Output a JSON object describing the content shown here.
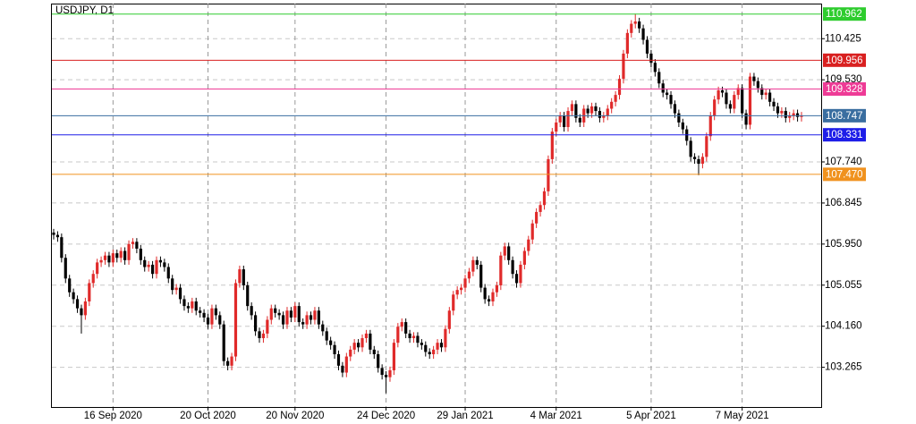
{
  "chart_data": {
    "type": "candlestick",
    "title": "USDJPY, D1",
    "categories": [
      null,
      null,
      null,
      null,
      null,
      null,
      null,
      null,
      null,
      null,
      null,
      null,
      null,
      null,
      null,
      "16 Sep 2020",
      null,
      null,
      null,
      null,
      null,
      null,
      null,
      null,
      null,
      null,
      null,
      null,
      null,
      null,
      null,
      null,
      null,
      null,
      null,
      null,
      null,
      null,
      null,
      "20 Oct 2020",
      null,
      null,
      null,
      null,
      null,
      null,
      null,
      null,
      null,
      null,
      null,
      null,
      null,
      null,
      null,
      null,
      null,
      null,
      null,
      null,
      null,
      "20 Nov 2020",
      null,
      null,
      null,
      null,
      null,
      null,
      null,
      null,
      null,
      null,
      null,
      null,
      null,
      null,
      null,
      null,
      null,
      null,
      null,
      null,
      null,
      null,
      "24 Dec 2020",
      null,
      null,
      null,
      null,
      null,
      null,
      null,
      null,
      null,
      null,
      null,
      null,
      null,
      null,
      null,
      null,
      null,
      null,
      null,
      "29 Jan 2021",
      null,
      null,
      null,
      null,
      null,
      null,
      null,
      null,
      null,
      null,
      null,
      null,
      null,
      null,
      null,
      null,
      null,
      null,
      null,
      null,
      null,
      null,
      "4 Mar 2021",
      null,
      null,
      null,
      null,
      null,
      null,
      null,
      null,
      null,
      null,
      null,
      null,
      null,
      null,
      null,
      null,
      null,
      null,
      null,
      null,
      null,
      null,
      null,
      "5 Apr 2021",
      null,
      null,
      null,
      null,
      null,
      null,
      null,
      null,
      null,
      null,
      null,
      null,
      null,
      null,
      null,
      null,
      null,
      null,
      null,
      null,
      null,
      null,
      "7 May 2021",
      null,
      null,
      null,
      null,
      null,
      null,
      null,
      null,
      null,
      null,
      null,
      null,
      null,
      null,
      null
    ],
    "open": [
      106.2,
      106.15,
      106.1,
      105.65,
      105.2,
      104.9,
      104.75,
      104.55,
      104.4,
      104.7,
      105.1,
      105.3,
      105.55,
      105.6,
      105.7,
      105.55,
      105.75,
      105.65,
      105.8,
      105.6,
      105.95,
      106.0,
      105.85,
      105.6,
      105.45,
      105.5,
      105.3,
      105.6,
      105.55,
      105.45,
      105.2,
      104.95,
      105.0,
      104.75,
      104.6,
      104.55,
      104.7,
      104.5,
      104.45,
      104.35,
      104.2,
      104.55,
      104.4,
      104.2,
      103.4,
      103.3,
      103.5,
      105.1,
      105.4,
      105.05,
      104.6,
      104.4,
      104.05,
      103.9,
      104.0,
      104.3,
      104.55,
      104.45,
      104.4,
      104.2,
      104.5,
      104.35,
      104.6,
      104.25,
      104.2,
      104.4,
      104.3,
      104.5,
      104.2,
      104.05,
      103.85,
      103.75,
      103.55,
      103.3,
      103.15,
      103.5,
      103.65,
      103.8,
      103.7,
      103.9,
      104.0,
      103.65,
      103.55,
      103.25,
      103.1,
      103.05,
      103.2,
      103.8,
      104.15,
      104.25,
      104.0,
      103.9,
      103.95,
      103.8,
      103.75,
      103.6,
      103.55,
      103.65,
      103.8,
      103.7,
      104.1,
      104.5,
      104.85,
      104.95,
      105.0,
      105.2,
      105.35,
      105.6,
      105.5,
      105.0,
      104.75,
      104.7,
      104.9,
      105.05,
      105.7,
      105.9,
      105.6,
      105.3,
      105.1,
      105.5,
      105.8,
      106.05,
      106.4,
      106.65,
      106.8,
      107.1,
      107.8,
      108.4,
      108.6,
      108.75,
      108.5,
      108.85,
      109.0,
      108.7,
      108.6,
      108.9,
      108.8,
      108.95,
      108.85,
      108.7,
      108.75,
      108.9,
      109.05,
      109.2,
      109.55,
      110.1,
      110.55,
      110.75,
      110.8,
      110.65,
      110.4,
      110.1,
      109.9,
      109.7,
      109.45,
      109.25,
      109.2,
      109.0,
      108.8,
      108.6,
      108.45,
      108.2,
      107.85,
      107.8,
      107.7,
      107.85,
      108.3,
      108.75,
      109.1,
      109.3,
      109.25,
      109.0,
      108.9,
      109.2,
      109.35,
      108.8,
      108.55,
      109.6,
      109.5,
      109.35,
      109.2,
      109.25,
      109.05,
      108.95,
      108.8,
      108.85,
      108.7,
      108.75,
      108.8,
      108.72
    ],
    "high": [
      106.28,
      106.23,
      106.18,
      105.73,
      105.28,
      104.98,
      104.83,
      104.63,
      104.78,
      105.18,
      105.38,
      105.63,
      105.68,
      105.78,
      105.78,
      105.83,
      105.83,
      105.88,
      105.88,
      106.03,
      106.08,
      106.08,
      105.93,
      105.68,
      105.58,
      105.58,
      105.68,
      105.68,
      105.63,
      105.53,
      105.28,
      105.08,
      105.08,
      104.83,
      104.68,
      104.78,
      104.78,
      104.58,
      104.53,
      104.43,
      104.63,
      104.63,
      104.48,
      104.28,
      103.48,
      103.58,
      105.18,
      105.48,
      105.48,
      105.13,
      104.68,
      104.48,
      104.13,
      104.08,
      104.38,
      104.63,
      104.63,
      104.53,
      104.48,
      104.58,
      104.58,
      104.68,
      104.68,
      104.33,
      104.48,
      104.48,
      104.58,
      104.58,
      104.28,
      104.13,
      103.93,
      103.83,
      103.63,
      103.38,
      103.58,
      103.73,
      103.88,
      103.88,
      103.98,
      104.08,
      104.08,
      103.73,
      103.63,
      103.33,
      103.18,
      103.28,
      103.88,
      104.23,
      104.33,
      104.33,
      104.08,
      104.03,
      104.03,
      103.88,
      103.83,
      103.68,
      103.73,
      103.88,
      103.88,
      104.18,
      104.58,
      104.93,
      105.03,
      105.08,
      105.28,
      105.43,
      105.68,
      105.68,
      105.58,
      105.08,
      104.83,
      104.98,
      105.13,
      105.78,
      105.98,
      105.98,
      105.68,
      105.38,
      105.58,
      105.88,
      106.13,
      106.48,
      106.73,
      106.88,
      107.18,
      107.88,
      108.48,
      108.68,
      108.83,
      108.83,
      108.93,
      109.08,
      109.08,
      108.78,
      108.98,
      108.98,
      109.03,
      109.03,
      108.93,
      108.83,
      108.98,
      109.13,
      109.28,
      109.63,
      110.18,
      110.63,
      110.83,
      110.97,
      110.88,
      110.73,
      110.48,
      110.18,
      109.98,
      109.78,
      109.53,
      109.33,
      109.28,
      109.08,
      108.88,
      108.68,
      108.53,
      108.28,
      107.93,
      107.88,
      107.93,
      108.38,
      108.83,
      109.18,
      109.38,
      109.38,
      109.33,
      109.08,
      109.28,
      109.43,
      109.43,
      108.88,
      109.68,
      109.68,
      109.58,
      109.43,
      109.33,
      109.33,
      109.13,
      109.03,
      108.93,
      108.93,
      108.83,
      108.88,
      108.88,
      108.83
    ],
    "low": [
      106.05,
      106.0,
      105.55,
      105.1,
      104.8,
      104.65,
      104.45,
      104.0,
      104.3,
      104.6,
      105.0,
      105.2,
      105.45,
      105.5,
      105.45,
      105.45,
      105.55,
      105.55,
      105.5,
      105.5,
      105.85,
      105.75,
      105.5,
      105.35,
      105.35,
      105.2,
      105.2,
      105.45,
      105.35,
      105.1,
      104.85,
      104.85,
      104.65,
      104.5,
      104.45,
      104.45,
      104.4,
      104.35,
      104.25,
      104.1,
      104.1,
      104.3,
      104.1,
      103.3,
      103.2,
      103.2,
      103.4,
      105.0,
      104.95,
      104.5,
      104.3,
      103.95,
      103.8,
      103.8,
      103.9,
      104.2,
      104.35,
      104.3,
      104.1,
      104.1,
      104.25,
      104.25,
      104.15,
      104.1,
      104.1,
      104.2,
      104.2,
      104.1,
      103.95,
      103.75,
      103.65,
      103.45,
      103.2,
      103.05,
      103.05,
      103.4,
      103.55,
      103.6,
      103.6,
      103.8,
      103.55,
      103.45,
      103.15,
      103.0,
      102.7,
      102.95,
      103.1,
      103.7,
      104.05,
      103.9,
      103.8,
      103.8,
      103.7,
      103.65,
      103.5,
      103.45,
      103.45,
      103.55,
      103.6,
      103.6,
      104.0,
      104.4,
      104.75,
      104.85,
      104.9,
      105.1,
      105.25,
      105.4,
      104.9,
      104.65,
      104.6,
      104.6,
      104.8,
      104.95,
      105.6,
      105.5,
      105.2,
      105.0,
      105.0,
      105.4,
      105.7,
      105.95,
      106.3,
      106.55,
      106.7,
      107.0,
      107.7,
      108.3,
      108.5,
      108.4,
      108.4,
      108.75,
      108.6,
      108.5,
      108.5,
      108.7,
      108.7,
      108.75,
      108.6,
      108.6,
      108.65,
      108.8,
      108.95,
      109.1,
      109.45,
      110.0,
      110.45,
      110.65,
      110.55,
      110.3,
      110.0,
      109.8,
      109.6,
      109.35,
      109.15,
      109.1,
      108.9,
      108.7,
      108.5,
      108.35,
      108.1,
      107.75,
      107.7,
      107.45,
      107.6,
      107.75,
      108.2,
      108.65,
      109.0,
      109.15,
      108.9,
      108.8,
      108.8,
      109.1,
      108.7,
      108.45,
      108.45,
      109.4,
      109.25,
      109.1,
      109.1,
      108.95,
      108.85,
      108.7,
      108.7,
      108.6,
      108.6,
      108.65,
      108.62,
      108.62
    ],
    "close": [
      106.15,
      106.1,
      105.65,
      105.2,
      104.9,
      104.75,
      104.55,
      104.4,
      104.7,
      105.1,
      105.3,
      105.55,
      105.6,
      105.7,
      105.55,
      105.75,
      105.65,
      105.8,
      105.6,
      105.95,
      106.0,
      105.85,
      105.6,
      105.45,
      105.5,
      105.3,
      105.6,
      105.55,
      105.45,
      105.2,
      104.95,
      105.0,
      104.75,
      104.6,
      104.55,
      104.7,
      104.5,
      104.45,
      104.35,
      104.2,
      104.55,
      104.4,
      104.2,
      103.4,
      103.3,
      103.5,
      105.1,
      105.4,
      105.05,
      104.6,
      104.4,
      104.05,
      103.9,
      104.0,
      104.3,
      104.55,
      104.45,
      104.4,
      104.2,
      104.5,
      104.35,
      104.6,
      104.25,
      104.2,
      104.4,
      104.3,
      104.5,
      104.2,
      104.05,
      103.85,
      103.75,
      103.55,
      103.3,
      103.15,
      103.5,
      103.65,
      103.8,
      103.7,
      103.9,
      104.0,
      103.65,
      103.55,
      103.25,
      103.1,
      103.05,
      103.2,
      103.8,
      104.15,
      104.25,
      104.0,
      103.9,
      103.95,
      103.8,
      103.75,
      103.6,
      103.55,
      103.65,
      103.8,
      103.7,
      104.1,
      104.5,
      104.85,
      104.95,
      105.0,
      105.2,
      105.35,
      105.6,
      105.5,
      105.0,
      104.75,
      104.7,
      104.9,
      105.05,
      105.7,
      105.9,
      105.6,
      105.3,
      105.1,
      105.5,
      105.8,
      106.05,
      106.4,
      106.65,
      106.8,
      107.1,
      107.8,
      108.4,
      108.6,
      108.75,
      108.5,
      108.85,
      109.0,
      108.7,
      108.6,
      108.9,
      108.8,
      108.95,
      108.85,
      108.7,
      108.75,
      108.9,
      109.05,
      109.2,
      109.55,
      110.1,
      110.55,
      110.75,
      110.8,
      110.65,
      110.4,
      110.1,
      109.9,
      109.7,
      109.45,
      109.25,
      109.2,
      109.0,
      108.8,
      108.6,
      108.45,
      108.2,
      107.85,
      107.8,
      107.7,
      107.85,
      108.3,
      108.75,
      109.1,
      109.3,
      109.25,
      109.0,
      108.9,
      109.2,
      109.35,
      108.8,
      108.55,
      109.6,
      109.5,
      109.35,
      109.2,
      109.25,
      109.05,
      108.95,
      108.8,
      108.85,
      108.7,
      108.75,
      108.8,
      108.72,
      108.747
    ],
    "up_color": "#e02a2a",
    "down_color": "#000000",
    "ylim": [
      102.4,
      111.19
    ],
    "yticks": [
      110.425,
      {
        "value": 109.53,
        "label": "109.530"
      },
      {
        "value": 107.74,
        "label": "107.740"
      },
      106.845,
      {
        "value": 105.95,
        "label": "105.950"
      },
      105.055,
      {
        "value": 104.16,
        "label": "104.160"
      },
      103.265
    ],
    "levels": [
      {
        "value": 110.962,
        "label": "110.962",
        "color": "#2ecc2e"
      },
      {
        "value": 109.956,
        "label": "109.956",
        "color": "#d92020"
      },
      {
        "value": 109.328,
        "label": "109.328",
        "color": "#ee3b96"
      },
      {
        "value": 108.747,
        "label": "108.747",
        "color": "#3a6ea0"
      },
      {
        "value": 108.331,
        "label": "108.331",
        "color": "#1e1ee8"
      },
      {
        "value": 107.47,
        "label": "107.470",
        "color": "#f0921e"
      }
    ],
    "grid": true
  }
}
